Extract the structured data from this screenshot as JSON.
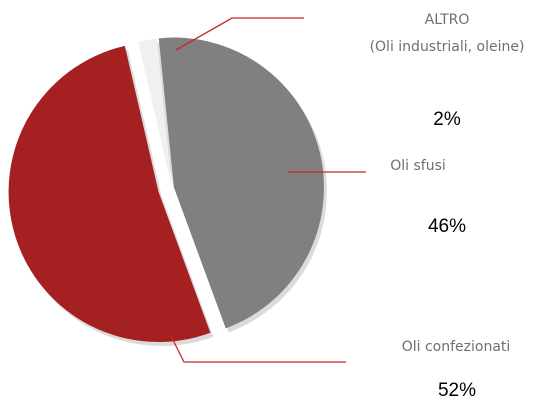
{
  "chart_data": {
    "type": "pie",
    "slices": [
      {
        "label_line1": "ALTRO",
        "label_line2": "(Oli industriali, oleine)",
        "percent_label": "2%",
        "value": 2,
        "color": "#f0f0f0"
      },
      {
        "label_line1": "Oli sfusi",
        "percent_label": "46%",
        "value": 46,
        "color": "#808080"
      },
      {
        "label_line1": "Oli confezionati",
        "percent_label": "52%",
        "value": 52,
        "color": "#a52020"
      }
    ],
    "colors": {
      "leader_line": "#c8262a",
      "label_text": "#6f6f6f",
      "percent_text": "#000000",
      "shadow": "#bdbdbd"
    }
  }
}
